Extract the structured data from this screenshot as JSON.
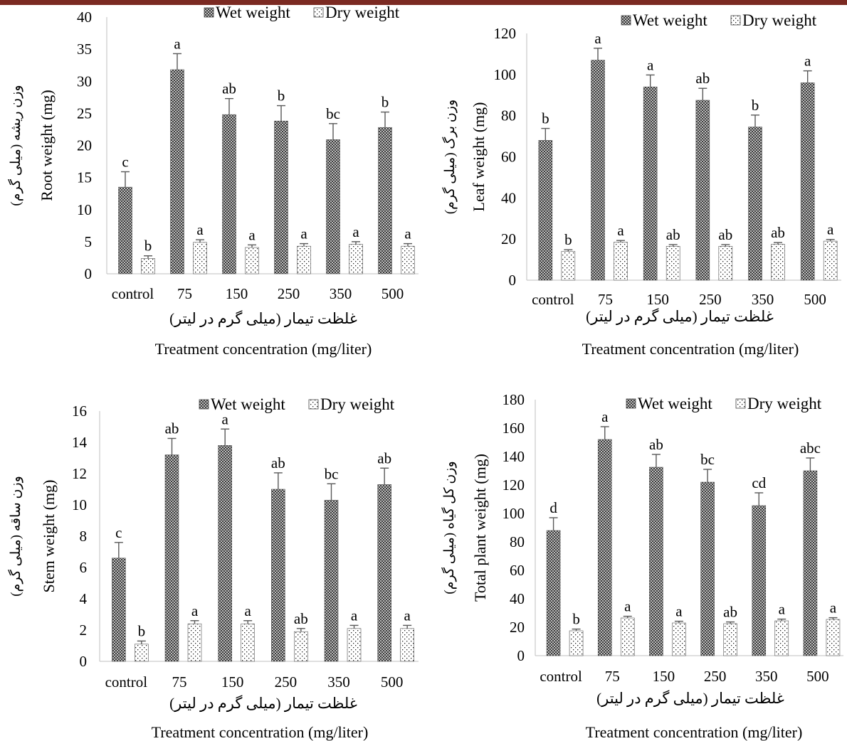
{
  "colors": {
    "top_bar": "#7b2a22",
    "wet_pattern": "cross-hatched dark",
    "dry_pattern": "dotted light",
    "axis": "#bfbfbf",
    "error_bar": "#595959"
  },
  "legend": {
    "wet": "Wet weight",
    "dry": "Dry weight"
  },
  "chart_data": [
    {
      "type": "bar",
      "categories": [
        "control",
        "75",
        "150",
        "250",
        "350",
        "500"
      ],
      "ylim": [
        0,
        40
      ],
      "ytick_step": 5,
      "ylabel": "Root weight (mg)",
      "ylabel_fa": "وزن ریشه (میلی گرم)",
      "xlabel_fa": "غلظت تیمار (میلی گرم در لیتر)",
      "xlabel": "Treatment concentration (mg/liter)",
      "series": [
        {
          "name": "Wet weight",
          "values": [
            13.5,
            31.8,
            24.8,
            23.8,
            20.9,
            22.8
          ],
          "errors": [
            2.4,
            2.5,
            2.5,
            2.4,
            2.5,
            2.4
          ],
          "letters": [
            "c",
            "a",
            "ab",
            "b",
            "bc",
            "b"
          ]
        },
        {
          "name": "Dry weight",
          "values": [
            2.4,
            4.9,
            4.1,
            4.3,
            4.6,
            4.3
          ],
          "errors": [
            0.4,
            0.4,
            0.4,
            0.4,
            0.4,
            0.4
          ],
          "letters": [
            "b",
            "a",
            "a",
            "a",
            "a",
            "a"
          ]
        }
      ]
    },
    {
      "type": "bar",
      "categories": [
        "control",
        "75",
        "150",
        "250",
        "350",
        "500"
      ],
      "ylim": [
        0,
        120
      ],
      "ytick_step": 20,
      "ylabel": "Leaf weight (mg)",
      "ylabel_fa": "وزن برگ (میلی گرم)",
      "xlabel_fa": "غلظت تیمار (میلی گرم در لیتر)",
      "xlabel": "Treatment concentration (mg/liter)",
      "series": [
        {
          "name": "Wet weight",
          "values": [
            68,
            107,
            94,
            87.5,
            74.5,
            96
          ],
          "errors": [
            5.8,
            5.8,
            5.8,
            5.8,
            5.8,
            5.8
          ],
          "letters": [
            "b",
            "a",
            "a",
            "ab",
            "b",
            "a"
          ]
        },
        {
          "name": "Dry weight",
          "values": [
            14,
            18.5,
            16.5,
            16.5,
            17.5,
            19
          ],
          "errors": [
            0.8,
            0.8,
            0.8,
            0.8,
            0.8,
            0.8
          ],
          "letters": [
            "b",
            "a",
            "ab",
            "ab",
            "ab",
            "a"
          ]
        }
      ]
    },
    {
      "type": "bar",
      "categories": [
        "control",
        "75",
        "150",
        "250",
        "350",
        "500"
      ],
      "ylim": [
        0,
        16
      ],
      "ytick_step": 2,
      "ylabel": "Stem weight (mg)",
      "ylabel_fa": "وزن ساقه (میلی گرم)",
      "xlabel_fa": "غلظت تیمار (میلی گرم در لیتر)",
      "xlabel": "Treatment concentration (mg/liter)",
      "series": [
        {
          "name": "Wet weight",
          "values": [
            6.6,
            13.2,
            13.8,
            11,
            10.3,
            11.3
          ],
          "errors": [
            1.0,
            1.05,
            1.05,
            1.05,
            1.05,
            1.05
          ],
          "letters": [
            "c",
            "ab",
            "a",
            "ab",
            "bc",
            "ab"
          ]
        },
        {
          "name": "Dry weight",
          "values": [
            1.1,
            2.4,
            2.4,
            1.9,
            2.1,
            2.1
          ],
          "errors": [
            0.2,
            0.2,
            0.2,
            0.2,
            0.2,
            0.2
          ],
          "letters": [
            "b",
            "a",
            "a",
            "ab",
            "a",
            "a"
          ]
        }
      ]
    },
    {
      "type": "bar",
      "categories": [
        "control",
        "75",
        "150",
        "250",
        "350",
        "500"
      ],
      "ylim": [
        0,
        180
      ],
      "ytick_step": 20,
      "ylabel": "Total plant weight (mg)",
      "ylabel_fa": "وزن کل گیاه (میلی گرم)",
      "xlabel_fa": "غلظت تیمار (میلی گرم در لیتر)",
      "xlabel": "Treatment concentration (mg/liter)",
      "series": [
        {
          "name": "Wet weight",
          "values": [
            88,
            152,
            132.5,
            122,
            105.5,
            130
          ],
          "errors": [
            9,
            9,
            9,
            9,
            9,
            9
          ],
          "letters": [
            "d",
            "a",
            "ab",
            "bc",
            "cd",
            "abc"
          ]
        },
        {
          "name": "Dry weight",
          "values": [
            17.5,
            26.5,
            23,
            22.5,
            24.5,
            25.5
          ],
          "errors": [
            1.2,
            1.2,
            1.2,
            1.2,
            1.2,
            1.2
          ],
          "letters": [
            "b",
            "a",
            "a",
            "ab",
            "a",
            "a"
          ]
        }
      ]
    }
  ]
}
